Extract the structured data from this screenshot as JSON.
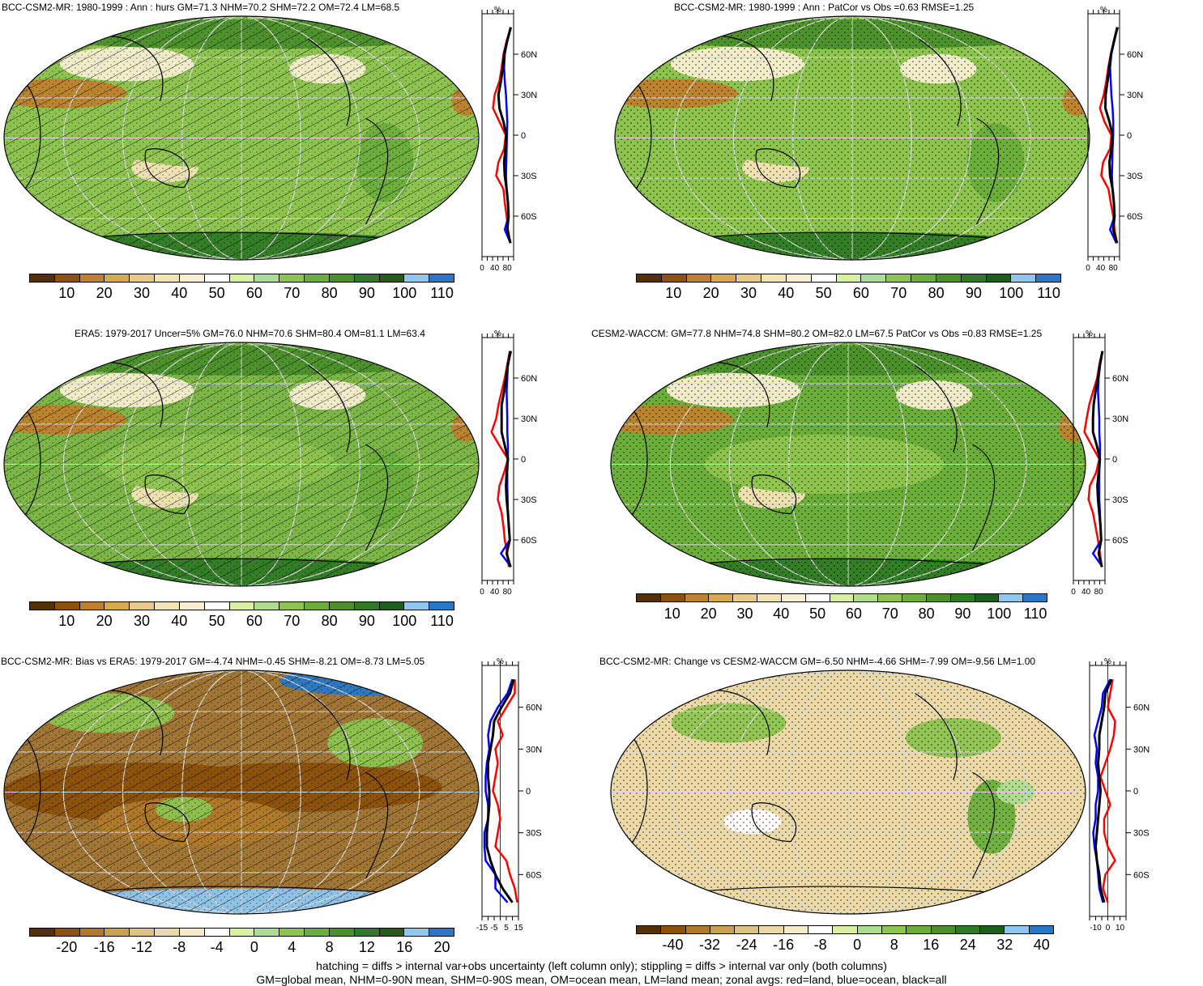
{
  "colors": {
    "abs_palette": [
      "#543005",
      "#8c510a",
      "#bf812d",
      "#d9a94e",
      "#e6c98b",
      "#f3e4b5",
      "#f7efcf",
      "#ffffff",
      "#d9f0a3",
      "#addd8e",
      "#8dc44f",
      "#6cae3c",
      "#4a8f2b",
      "#2f7a25",
      "#1d5e1c",
      "#8ec7f0",
      "#2878c8"
    ],
    "diff_palette": [
      "#543005",
      "#8c510a",
      "#b07a2a",
      "#c9a153",
      "#dcc283",
      "#ebd9a6",
      "#f5ebcb",
      "#ffffff",
      "#d9f0a3",
      "#addd8e",
      "#8dc44f",
      "#6cae3c",
      "#4a8f2b",
      "#2f7a25",
      "#1d5e1c",
      "#8ec7f0",
      "#2878c8"
    ],
    "land_line": "#ff0000",
    "ocean_line": "#0000ff",
    "all_line": "#000000"
  },
  "panels": [
    {
      "id": "bcc",
      "title": "BCC-CSM2-MR: 1980-1999 : Ann : hurs GM=71.3 NHM=70.2 SHM=72.2 OM=72.4 LM=68.5",
      "unit": "%",
      "hatched": true,
      "stippled": true,
      "base_color": "#8dc44f",
      "colorbar_labels": [
        "10",
        "20",
        "30",
        "40",
        "50",
        "60",
        "70",
        "80",
        "90",
        "100",
        "110"
      ],
      "zonal_xlim": [
        0,
        100
      ],
      "zonal_xticks": [
        "0",
        "40",
        "80"
      ],
      "zonal_ylabels": [
        "60N",
        "30N",
        "0",
        "30S",
        "60S"
      ],
      "zonal": {
        "lat": [
          80,
          70,
          60,
          50,
          40,
          30,
          20,
          10,
          0,
          -10,
          -20,
          -30,
          -40,
          -50,
          -60,
          -70,
          -80
        ],
        "land": [
          92,
          78,
          68,
          62,
          55,
          40,
          35,
          55,
          75,
          70,
          52,
          45,
          68,
          72,
          78,
          82,
          90
        ],
        "ocean": [
          90,
          80,
          72,
          70,
          72,
          76,
          78,
          80,
          79,
          78,
          77,
          76,
          78,
          82,
          84,
          72,
          90
        ],
        "all": [
          91,
          80,
          70,
          66,
          60,
          52,
          55,
          68,
          77,
          74,
          70,
          72,
          78,
          82,
          84,
          80,
          90
        ]
      }
    },
    {
      "id": "bcc_pat",
      "title": "BCC-CSM2-MR: 1980-1999 : Ann : PatCor vs Obs =0.63 RMSE=1.25",
      "unit": "%",
      "hatched": false,
      "stippled": true,
      "base_color": "#8dc44f",
      "colorbar_labels": [
        "10",
        "20",
        "30",
        "40",
        "50",
        "60",
        "70",
        "80",
        "90",
        "100",
        "110"
      ],
      "zonal_xlim": [
        0,
        100
      ],
      "zonal_xticks": [
        "0",
        "40",
        "80"
      ],
      "zonal_ylabels": [
        "60N",
        "30N",
        "0",
        "30S",
        "60S"
      ],
      "zonal": {
        "lat": [
          80,
          70,
          60,
          50,
          40,
          30,
          20,
          10,
          0,
          -10,
          -20,
          -30,
          -40,
          -50,
          -60,
          -70,
          -80
        ],
        "land": [
          95,
          82,
          72,
          64,
          58,
          50,
          38,
          52,
          74,
          70,
          48,
          42,
          65,
          72,
          80,
          84,
          92
        ],
        "ocean": [
          92,
          82,
          74,
          70,
          72,
          74,
          78,
          80,
          80,
          78,
          77,
          76,
          78,
          82,
          84,
          70,
          90
        ],
        "all": [
          93,
          83,
          73,
          67,
          62,
          56,
          55,
          68,
          78,
          74,
          68,
          70,
          78,
          82,
          84,
          80,
          92
        ]
      }
    },
    {
      "id": "era5",
      "title": "ERA5: 1979-2017 Uncer=5% GM=76.0 NHM=70.6 SHM=80.4 OM=81.1 LM=63.4",
      "unit": "%",
      "hatched": true,
      "stippled": true,
      "base_color": "#7bb646",
      "colorbar_labels": [
        "10",
        "20",
        "30",
        "40",
        "50",
        "60",
        "70",
        "80",
        "90",
        "100",
        "110"
      ],
      "zonal_xlim": [
        0,
        100
      ],
      "zonal_xticks": [
        "0",
        "40",
        "80"
      ],
      "zonal_ylabels": [
        "60N",
        "30N",
        "0",
        "30S",
        "60S"
      ],
      "zonal": {
        "lat": [
          80,
          70,
          60,
          50,
          40,
          30,
          20,
          10,
          0,
          -10,
          -20,
          -30,
          -40,
          -50,
          -60,
          -70,
          -80
        ],
        "land": [
          88,
          80,
          72,
          62,
          52,
          45,
          30,
          55,
          82,
          70,
          55,
          50,
          62,
          68,
          72,
          80,
          85
        ],
        "ocean": [
          92,
          82,
          80,
          78,
          79,
          80,
          80,
          82,
          82,
          80,
          80,
          81,
          82,
          85,
          88,
          60,
          92
        ],
        "all": [
          90,
          82,
          76,
          70,
          62,
          62,
          62,
          72,
          82,
          78,
          76,
          78,
          82,
          85,
          88,
          78,
          90
        ]
      }
    },
    {
      "id": "cesm",
      "title": "CESM2-WACCM: GM=77.8 NHM=74.8 SHM=80.2 OM=82.0 LM=67.5 PatCor vs Obs =0.83 RMSE=1.25",
      "unit": "%",
      "hatched": false,
      "stippled": true,
      "base_color": "#6cae3c",
      "colorbar_labels": [
        "10",
        "20",
        "30",
        "40",
        "50",
        "60",
        "70",
        "80",
        "90",
        "100",
        "110"
      ],
      "zonal_xlim": [
        0,
        100
      ],
      "zonal_xticks": [
        "0",
        "40",
        "80"
      ],
      "zonal_ylabels": [
        "60N",
        "30N",
        "0",
        "30S",
        "60S"
      ],
      "zonal": {
        "lat": [
          80,
          70,
          60,
          50,
          40,
          30,
          20,
          10,
          0,
          -10,
          -20,
          -30,
          -40,
          -50,
          -60,
          -70,
          -80
        ],
        "land": [
          92,
          82,
          75,
          62,
          50,
          42,
          35,
          58,
          82,
          72,
          52,
          48,
          62,
          70,
          78,
          84,
          90
        ],
        "ocean": [
          92,
          85,
          80,
          78,
          80,
          82,
          82,
          84,
          84,
          82,
          82,
          82,
          84,
          86,
          88,
          62,
          92
        ],
        "all": [
          92,
          84,
          78,
          70,
          64,
          62,
          62,
          74,
          84,
          80,
          76,
          78,
          82,
          86,
          88,
          80,
          90
        ]
      }
    },
    {
      "id": "bias",
      "title": "BCC-CSM2-MR: Bias vs ERA5: 1979-2017 GM=-4.74 NHM=-0.45 SHM=-8.21 OM=-8.73 LM=5.05",
      "unit": "%",
      "hatched": true,
      "stippled": true,
      "base_color": "#a17635",
      "colorbar_labels": [
        "-20",
        "-16",
        "-12",
        "-8",
        "-4",
        "0",
        "4",
        "8",
        "12",
        "16",
        "20"
      ],
      "zonal_xlim": [
        -15,
        15
      ],
      "zonal_xticks": [
        "-15",
        "-5",
        "5",
        "15"
      ],
      "zonal_ylabels": [
        "60N",
        "30N",
        "0",
        "30S",
        "60S"
      ],
      "zonal": {
        "lat": [
          80,
          70,
          60,
          50,
          40,
          30,
          20,
          10,
          0,
          -10,
          -20,
          -30,
          -40,
          -50,
          -60,
          -70,
          -80
        ],
        "land": [
          12,
          12,
          5,
          -2,
          2,
          -4,
          -2,
          -4,
          -6,
          -2,
          0,
          -2,
          -4,
          5,
          8,
          12,
          14
        ],
        "ocean": [
          10,
          6,
          -2,
          -8,
          -10,
          -9,
          -11,
          -12,
          -12,
          -10,
          -10,
          -13,
          -13,
          -12,
          -4,
          -4,
          6
        ],
        "all": [
          11,
          8,
          1,
          -5,
          -6,
          -8,
          -10,
          -10,
          -9,
          -9,
          -10,
          -11,
          -11,
          -8,
          -4,
          2,
          10
        ]
      }
    },
    {
      "id": "change",
      "title": "BCC-CSM2-MR: Change vs CESM2-WACCM GM=-6.50 NHM=-4.66 SHM=-7.99 OM=-9.56 LM=1.00",
      "unit": "%",
      "hatched": false,
      "stippled": true,
      "base_color": "#ebd9a6",
      "colorbar_labels": [
        "-40",
        "-32",
        "-24",
        "-16",
        "-8",
        "0",
        "8",
        "16",
        "24",
        "32",
        "40"
      ],
      "zonal_xlim": [
        -15,
        15
      ],
      "zonal_xticks": [
        "-10",
        "0",
        "10"
      ],
      "zonal_ylabels": [
        "60N",
        "30N",
        "0",
        "30S",
        "60S"
      ],
      "zonal": {
        "lat": [
          80,
          70,
          60,
          50,
          40,
          30,
          20,
          10,
          0,
          -10,
          -20,
          -30,
          -40,
          -50,
          -60,
          -70,
          -80
        ],
        "land": [
          4,
          2,
          0,
          6,
          5,
          2,
          -2,
          -6,
          -2,
          2,
          -3,
          -3,
          0,
          6,
          -2,
          -4,
          0
        ],
        "ocean": [
          2,
          -4,
          -5,
          -8,
          -11,
          -9,
          -10,
          -8,
          -8,
          -10,
          -10,
          -12,
          -11,
          -9,
          -8,
          -7,
          -4
        ],
        "all": [
          3,
          -2,
          -3,
          -5,
          -7,
          -7,
          -8,
          -7,
          -6,
          -7,
          -8,
          -9,
          -10,
          -9,
          -7,
          -6,
          -3
        ]
      }
    }
  ],
  "footer": {
    "line1": "hatching = diffs > internal var+obs uncertainty (left column only); stippling = diffs > internal var only (both columns)",
    "line2": "GM=global mean, NHM=0-90N mean, SHM=0-90S mean, OM=ocean mean, LM=land mean; zonal avgs: red=land, blue=ocean, black=all"
  }
}
